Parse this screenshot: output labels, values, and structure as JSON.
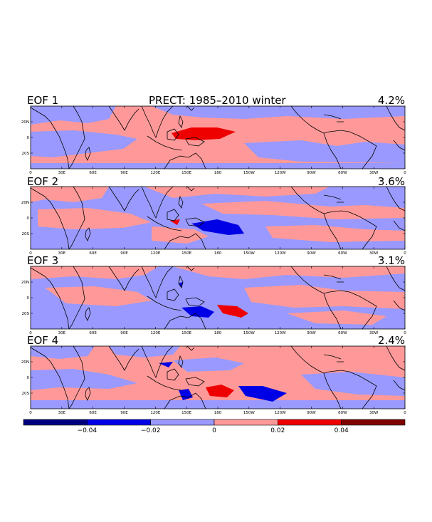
{
  "figure": {
    "title": "PRECT: 1985–2010 winter"
  },
  "longitude_ticks": [
    "0",
    "30E",
    "60E",
    "90E",
    "120E",
    "150E",
    "180",
    "150W",
    "120W",
    "90W",
    "60W",
    "30W",
    "0"
  ],
  "latitude_ticks": [
    "20N",
    "0",
    "20S"
  ],
  "colors": {
    "strong_negative": "#00007f",
    "negative": "#0000e6",
    "weak_negative": "#9999ff",
    "weak_positive": "#ff9999",
    "positive": "#ee0000",
    "strong_positive": "#7f0000",
    "coast": "#000000"
  },
  "panels": [
    {
      "label": "EOF 1",
      "variance": "4.2%"
    },
    {
      "label": "EOF 2",
      "variance": "3.6%"
    },
    {
      "label": "EOF 3",
      "variance": "3.1%"
    },
    {
      "label": "EOF 4",
      "variance": "2.4%"
    }
  ],
  "colorbar": {
    "labels": [
      "−0.04",
      "−0.02",
      "0",
      "0.02",
      "0.04"
    ],
    "levels": [
      -0.06,
      -0.04,
      -0.02,
      0,
      0.02,
      0.04,
      0.06
    ]
  }
}
